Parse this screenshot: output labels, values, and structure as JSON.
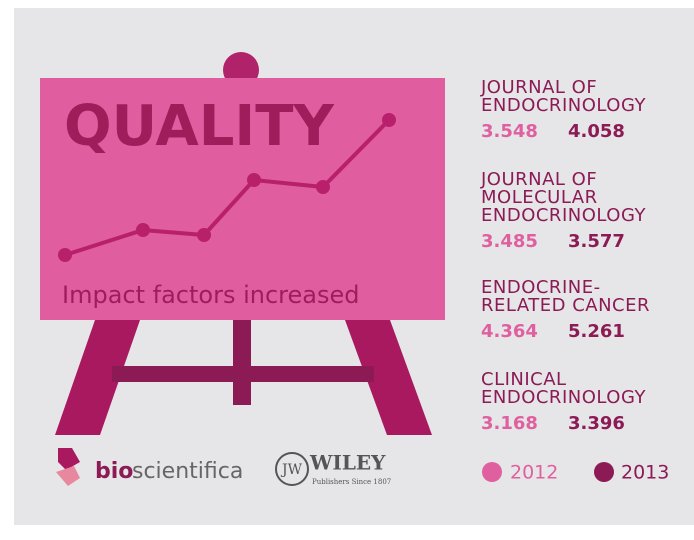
{
  "header": {
    "title": "QUALITY",
    "subtitle": "Impact factors increased"
  },
  "journals": [
    {
      "name_lines": [
        "JOURNAL OF",
        "ENDOCRINOLOGY"
      ],
      "value_2012": 3.548,
      "value_2013": 4.058
    },
    {
      "name_lines": [
        "JOURNAL OF",
        "MOLECULAR",
        "ENDOCRINOLOGY"
      ],
      "value_2012": 3.485,
      "value_2013": 3.577
    },
    {
      "name_lines": [
        "ENDOCRINE-",
        "RELATED CANCER"
      ],
      "value_2012": 4.364,
      "value_2013": 5.261
    },
    {
      "name_lines": [
        "CLINICAL",
        "ENDOCRINOLOGY"
      ],
      "value_2012": 3.168,
      "value_2013": 3.396
    }
  ],
  "legend": [
    "2012",
    "2013"
  ],
  "logos": {
    "bioscientifica": [
      "bio",
      "scientifica"
    ],
    "wiley": "WILEY",
    "wiley_tagline": "Publishers Since 1807"
  }
}
